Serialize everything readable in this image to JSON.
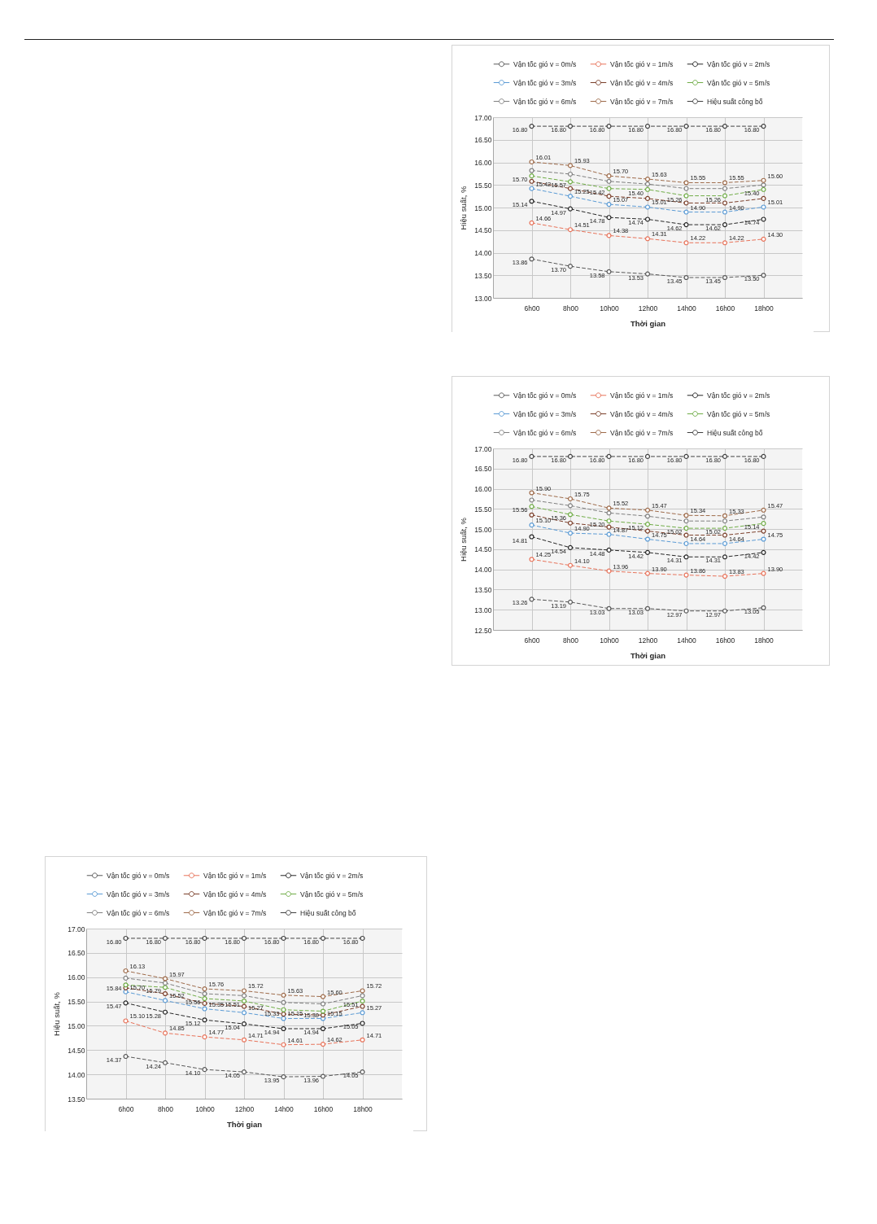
{
  "chart_data": [
    {
      "type": "line",
      "xlabel": "Thời gian",
      "ylabel": "Hiệu suất, %",
      "categories": [
        "6h00",
        "8h00",
        "10h00",
        "12h00",
        "14h00",
        "16h00",
        "18h00"
      ],
      "ylim": [
        13,
        17
      ],
      "yticks": [
        {
          "value": 13,
          "label": "13.00"
        },
        {
          "value": 13.5,
          "label": "13.50"
        },
        {
          "value": 14,
          "label": "14.00"
        },
        {
          "value": 14.5,
          "label": "14.50"
        },
        {
          "value": 15,
          "label": "15.00"
        },
        {
          "value": 15.5,
          "label": "15.50"
        },
        {
          "value": 16,
          "label": "16.00"
        },
        {
          "value": 16.5,
          "label": "16.50"
        },
        {
          "value": 17,
          "label": "17.00"
        }
      ],
      "grid": true,
      "legend": "top",
      "marker": "circle",
      "line_style": "dashed",
      "series": [
        {
          "name": "Vận tốc gió v = 0m/s",
          "color": "#595959",
          "values": [
            13.86,
            13.7,
            13.58,
            13.53,
            13.45,
            13.45,
            13.5
          ],
          "value_labels": [
            "13.86",
            "13.70",
            "13.58",
            "13.53",
            "13.45",
            "13.45",
            "13.50"
          ]
        },
        {
          "name": "Vận tốc gió v = 1m/s",
          "color": "#e8735a",
          "values": [
            14.66,
            14.51,
            14.38,
            14.31,
            14.22,
            14.22,
            14.3
          ],
          "value_labels": [
            "14.66",
            "14.51",
            "14.38",
            "14.31",
            "14.22",
            "14.22",
            "14.30"
          ]
        },
        {
          "name": "Vận tốc gió v = 2m/s",
          "color": "#262626",
          "values": [
            15.14,
            14.97,
            14.78,
            14.74,
            14.62,
            14.62,
            14.74
          ],
          "value_labels": [
            "15.14",
            "14.97",
            "14.78",
            "14.74",
            "14.62",
            "14.62",
            "14.74"
          ]
        },
        {
          "name": "Vận tốc gió v = 3m/s",
          "color": "#5b9bd5",
          "values": [
            15.42,
            15.25,
            15.07,
            15.01,
            14.9,
            14.9,
            15.01
          ],
          "value_labels": [
            "15.42",
            "15.25",
            "15.07",
            "15.01",
            "14.90",
            "14.90",
            "15.01"
          ]
        },
        {
          "name": "Vận tốc gió v = 4m/s",
          "color": "#7b3f2a",
          "values": [
            15.58,
            15.42,
            15.25,
            15.2,
            15.1,
            15.1,
            15.2
          ]
        },
        {
          "name": "Vận tốc gió v = 5m/s",
          "color": "#70ad47",
          "values": [
            15.7,
            15.57,
            15.42,
            15.4,
            15.26,
            15.26,
            15.4
          ],
          "value_labels": [
            "15.70",
            "15.57",
            "15.42",
            "15.40",
            "15.26",
            "15.26",
            "15.40"
          ]
        },
        {
          "name": "Vận tốc gió v = 6m/s",
          "color": "#808080",
          "values": [
            15.82,
            15.74,
            15.58,
            15.52,
            15.42,
            15.42,
            15.5
          ]
        },
        {
          "name": "Vận tốc gió v = 7m/s",
          "color": "#9e6b4a",
          "values": [
            16.01,
            15.93,
            15.7,
            15.63,
            15.55,
            15.55,
            15.6
          ],
          "value_labels": [
            "16.01",
            "15.93",
            "15.70",
            "15.63",
            "15.55",
            "15.55",
            "15.60"
          ]
        },
        {
          "name": "Hiệu suất công bố",
          "color": "#404040",
          "values": [
            16.8,
            16.8,
            16.8,
            16.8,
            16.8,
            16.8,
            16.8
          ],
          "value_labels": [
            "16.80",
            "16.80",
            "16.80",
            "16.80",
            "16.80",
            "16.80",
            "16.80"
          ]
        }
      ]
    },
    {
      "type": "line",
      "xlabel": "Thời gian",
      "ylabel": "Hiệu suất, %",
      "categories": [
        "6h00",
        "8h00",
        "10h00",
        "12h00",
        "14h00",
        "16h00",
        "18h00"
      ],
      "ylim": [
        12.5,
        17
      ],
      "yticks": [
        {
          "value": 12.5,
          "label": "12.50"
        },
        {
          "value": 13,
          "label": "13.00"
        },
        {
          "value": 13.5,
          "label": "13.50"
        },
        {
          "value": 14,
          "label": "14.00"
        },
        {
          "value": 14.5,
          "label": "14.50"
        },
        {
          "value": 15,
          "label": "15.00"
        },
        {
          "value": 15.5,
          "label": "15.50"
        },
        {
          "value": 16,
          "label": "16.00"
        },
        {
          "value": 16.5,
          "label": "16.50"
        },
        {
          "value": 17,
          "label": "17.00"
        }
      ],
      "grid": true,
      "legend": "top",
      "marker": "circle",
      "line_style": "dashed",
      "series": [
        {
          "name": "Vận tốc gió v = 0m/s",
          "color": "#595959",
          "values": [
            13.26,
            13.19,
            13.03,
            13.03,
            12.97,
            12.97,
            13.05
          ],
          "value_labels": [
            "13.26",
            "13.19",
            "13.03",
            "13.03",
            "12.97",
            "12.97",
            "13.05"
          ]
        },
        {
          "name": "Vận tốc gió v = 1m/s",
          "color": "#e8735a",
          "values": [
            14.25,
            14.1,
            13.96,
            13.9,
            13.86,
            13.83,
            13.9
          ],
          "value_labels": [
            "14.25",
            "14.10",
            "13.96",
            "13.90",
            "13.86",
            "13.83",
            "13.90"
          ]
        },
        {
          "name": "Vận tốc gió v = 2m/s",
          "color": "#262626",
          "values": [
            14.81,
            14.54,
            14.48,
            14.42,
            14.31,
            14.31,
            14.42
          ],
          "value_labels": [
            "14.81",
            "14.54",
            "14.48",
            "14.42",
            "14.31",
            "14.31",
            "14.42"
          ]
        },
        {
          "name": "Vận tốc gió v = 3m/s",
          "color": "#5b9bd5",
          "values": [
            15.1,
            14.9,
            14.87,
            14.75,
            14.64,
            14.64,
            14.75
          ],
          "value_labels": [
            "15.10",
            "14.90",
            "14.87",
            "14.75",
            "14.64",
            "14.64",
            "14.75"
          ]
        },
        {
          "name": "Vận tốc gió v = 4m/s",
          "color": "#7b3f2a",
          "values": [
            15.35,
            15.15,
            15.05,
            14.95,
            14.85,
            14.85,
            14.95
          ]
        },
        {
          "name": "Vận tốc gió v = 5m/s",
          "color": "#70ad47",
          "values": [
            15.56,
            15.36,
            15.2,
            15.12,
            15.02,
            15.02,
            15.14
          ],
          "value_labels": [
            "15.56",
            "15.36",
            "15.20",
            "15.12",
            "15.02",
            "15.02",
            "15.14"
          ]
        },
        {
          "name": "Vận tốc gió v = 6m/s",
          "color": "#808080",
          "values": [
            15.72,
            15.58,
            15.4,
            15.32,
            15.2,
            15.2,
            15.3
          ]
        },
        {
          "name": "Vận tốc gió v = 7m/s",
          "color": "#9e6b4a",
          "values": [
            15.9,
            15.75,
            15.52,
            15.47,
            15.34,
            15.33,
            15.47
          ],
          "value_labels": [
            "15.90",
            "15.75",
            "15.52",
            "15.47",
            "15.34",
            "15.33",
            "15.47"
          ]
        },
        {
          "name": "Hiệu suất công bố",
          "color": "#404040",
          "values": [
            16.8,
            16.8,
            16.8,
            16.8,
            16.8,
            16.8,
            16.8
          ],
          "value_labels": [
            "16.80",
            "16.80",
            "16.80",
            "16.80",
            "16.80",
            "16.80",
            "16.80"
          ]
        }
      ]
    },
    {
      "type": "line",
      "xlabel": "Thời gian",
      "ylabel": "Hiệu suất, %",
      "categories": [
        "6h00",
        "8h00",
        "10h00",
        "12h00",
        "14h00",
        "16h00",
        "18h00"
      ],
      "ylim": [
        13.5,
        17
      ],
      "yticks": [
        {
          "value": 13.5,
          "label": "13.50"
        },
        {
          "value": 14,
          "label": "14.00"
        },
        {
          "value": 14.5,
          "label": "14.50"
        },
        {
          "value": 15,
          "label": "15.00"
        },
        {
          "value": 15.5,
          "label": "15.50"
        },
        {
          "value": 16,
          "label": "16.00"
        },
        {
          "value": 16.5,
          "label": "16.50"
        },
        {
          "value": 17,
          "label": "17.00"
        }
      ],
      "grid": true,
      "legend": "top",
      "marker": "circle",
      "line_style": "dashed",
      "series": [
        {
          "name": "Vận tốc gió v = 0m/s",
          "color": "#595959",
          "values": [
            14.37,
            14.24,
            14.1,
            14.05,
            13.95,
            13.96,
            14.05
          ],
          "value_labels": [
            "14.37",
            "14.24",
            "14.10",
            "14.05",
            "13.95",
            "13.96",
            "14.05"
          ]
        },
        {
          "name": "Vận tốc gió v = 1m/s",
          "color": "#e8735a",
          "values": [
            15.1,
            14.85,
            14.77,
            14.71,
            14.61,
            14.62,
            14.71
          ],
          "value_labels": [
            "15.10",
            "14.85",
            "14.77",
            "14.71",
            "14.61",
            "14.62",
            "14.71"
          ]
        },
        {
          "name": "Vận tốc gió v = 2m/s",
          "color": "#262626",
          "values": [
            15.47,
            15.28,
            15.12,
            15.04,
            14.94,
            14.94,
            15.05
          ],
          "value_labels": [
            "15.47",
            "15.28",
            "15.12",
            "15.04",
            "14.94",
            "14.94",
            "15.05"
          ]
        },
        {
          "name": "Vận tốc gió v = 3m/s",
          "color": "#5b9bd5",
          "values": [
            15.7,
            15.52,
            15.35,
            15.27,
            15.15,
            15.15,
            15.27
          ],
          "value_labels": [
            "15.70",
            "15.52",
            "15.35",
            "15.27",
            "15.15",
            "15.15",
            "15.27"
          ]
        },
        {
          "name": "Vận tốc gió v = 4m/s",
          "color": "#7b3f2a",
          "values": [
            15.78,
            15.66,
            15.46,
            15.4,
            15.24,
            15.22,
            15.4
          ]
        },
        {
          "name": "Vận tốc gió v = 5m/s",
          "color": "#70ad47",
          "values": [
            15.84,
            15.79,
            15.56,
            15.51,
            15.33,
            15.3,
            15.51
          ],
          "value_labels": [
            "15.84",
            "15.79",
            "15.56",
            "15.51",
            "15.33",
            "15.30",
            "15.51"
          ]
        },
        {
          "name": "Vận tốc gió v = 6m/s",
          "color": "#808080",
          "values": [
            15.98,
            15.88,
            15.66,
            15.62,
            15.48,
            15.45,
            15.62
          ]
        },
        {
          "name": "Vận tốc gió v = 7m/s",
          "color": "#9e6b4a",
          "values": [
            16.13,
            15.97,
            15.76,
            15.72,
            15.63,
            15.6,
            15.72
          ],
          "value_labels": [
            "16.13",
            "15.97",
            "15.76",
            "15.72",
            "15.63",
            "15.60",
            "15.72"
          ]
        },
        {
          "name": "Hiệu suất công bố",
          "color": "#404040",
          "values": [
            16.8,
            16.8,
            16.8,
            16.8,
            16.8,
            16.8,
            16.8
          ],
          "value_labels": [
            "16.80",
            "16.80",
            "16.80",
            "16.80",
            "16.80",
            "16.80",
            "16.80"
          ]
        }
      ]
    }
  ]
}
